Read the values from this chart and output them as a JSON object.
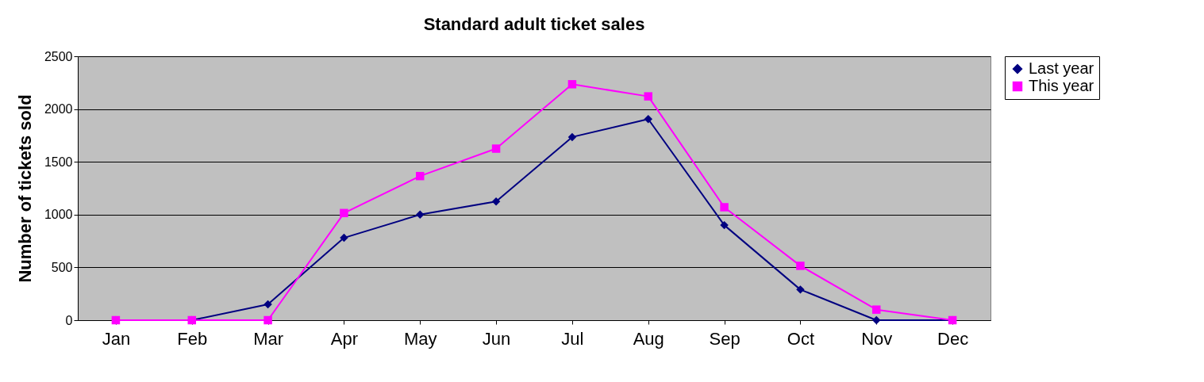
{
  "chart_data": {
    "type": "line",
    "title": "Standard adult ticket sales",
    "ylabel": "Number of tickets sold",
    "categories": [
      "Jan",
      "Feb",
      "Mar",
      "Apr",
      "May",
      "Jun",
      "Jul",
      "Aug",
      "Sep",
      "Oct",
      "Nov",
      "Dec"
    ],
    "series": [
      {
        "name": "Last year",
        "color": "#000080",
        "marker": "diamond",
        "values": [
          0,
          0,
          150,
          780,
          1000,
          1125,
          1735,
          1905,
          900,
          290,
          0,
          0
        ]
      },
      {
        "name": "This year",
        "color": "#ff00ff",
        "marker": "square",
        "values": [
          0,
          0,
          0,
          1015,
          1365,
          1625,
          2235,
          2120,
          1070,
          515,
          100,
          0
        ]
      }
    ],
    "ylim": [
      0,
      2500
    ],
    "yticks": [
      0,
      500,
      1000,
      1500,
      2000,
      2500
    ],
    "grid": "y",
    "legend": "right",
    "line_style": "solid"
  }
}
